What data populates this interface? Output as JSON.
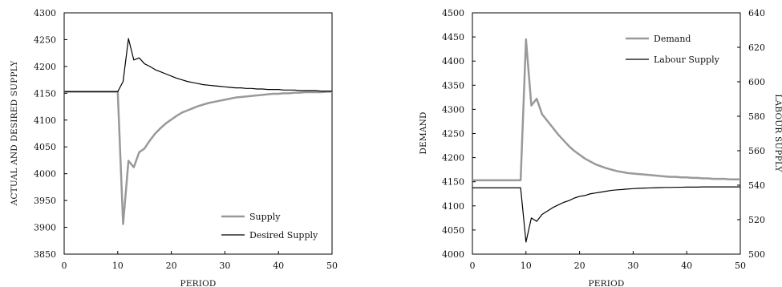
{
  "chart_data": [
    {
      "type": "line",
      "title": "",
      "xlabel": "PERIOD",
      "ylabel": "ACTUAL AND DESIRED SUPPLY",
      "xlim": [
        0,
        50
      ],
      "ylim": [
        3850,
        4300
      ],
      "xticks": [
        "0",
        "10",
        "20",
        "30",
        "40",
        "50"
      ],
      "yticks": [
        "3850",
        "3900",
        "3950",
        "4000",
        "4050",
        "4100",
        "4150",
        "4200",
        "4250",
        "4300"
      ],
      "grid": false,
      "legend_position": "bottom-right",
      "series": [
        {
          "name": "Supply",
          "color": "#999999",
          "width": 2.5,
          "x": [
            0,
            1,
            2,
            3,
            4,
            5,
            6,
            7,
            8,
            9,
            10,
            11,
            12,
            13,
            14,
            15,
            16,
            17,
            18,
            19,
            20,
            21,
            22,
            23,
            24,
            25,
            26,
            27,
            28,
            29,
            30,
            31,
            32,
            33,
            34,
            35,
            36,
            37,
            38,
            39,
            40,
            41,
            42,
            43,
            44,
            45,
            46,
            47,
            48,
            49,
            50
          ],
          "y": [
            4153,
            4153,
            4153,
            4153,
            4153,
            4153,
            4153,
            4153,
            4153,
            4153,
            4153,
            3906,
            4024,
            4012,
            4040,
            4047,
            4062,
            4075,
            4085,
            4094,
            4101,
            4108,
            4114,
            4118,
            4122,
            4126,
            4129,
            4132,
            4134,
            4136,
            4138,
            4140,
            4142,
            4143,
            4144,
            4145,
            4146,
            4147,
            4148,
            4149,
            4149,
            4150,
            4150,
            4151,
            4151,
            4152,
            4152,
            4152,
            4152,
            4153,
            4153
          ]
        },
        {
          "name": "Desired Supply",
          "color": "#000000",
          "width": 1.2,
          "x": [
            0,
            1,
            2,
            3,
            4,
            5,
            6,
            7,
            8,
            9,
            10,
            11,
            12,
            13,
            14,
            15,
            16,
            17,
            18,
            19,
            20,
            21,
            22,
            23,
            24,
            25,
            26,
            27,
            28,
            29,
            30,
            31,
            32,
            33,
            34,
            35,
            36,
            37,
            38,
            39,
            40,
            41,
            42,
            43,
            44,
            45,
            46,
            47,
            48,
            49,
            50
          ],
          "y": [
            4153,
            4153,
            4153,
            4153,
            4153,
            4153,
            4153,
            4153,
            4153,
            4153,
            4153,
            4172,
            4252,
            4212,
            4216,
            4205,
            4200,
            4194,
            4190,
            4186,
            4182,
            4178,
            4175,
            4172,
            4170,
            4168,
            4166,
            4165,
            4164,
            4163,
            4162,
            4161,
            4160,
            4160,
            4159,
            4159,
            4158,
            4158,
            4157,
            4157,
            4157,
            4156,
            4156,
            4156,
            4155,
            4155,
            4155,
            4155,
            4154,
            4154,
            4154
          ]
        }
      ]
    },
    {
      "type": "line",
      "title": "",
      "xlabel": "PERIOD",
      "ylabel": "DEMAND",
      "y2label": "LABOUR SUPPLY",
      "xlim": [
        0,
        50
      ],
      "ylim": [
        4000,
        4500
      ],
      "y2lim": [
        500,
        640
      ],
      "xticks": [
        "0",
        "10",
        "20",
        "30",
        "40",
        "50"
      ],
      "yticks": [
        "4000",
        "4050",
        "4100",
        "4150",
        "4200",
        "4250",
        "4300",
        "4350",
        "4400",
        "4450",
        "4500"
      ],
      "y2ticks": [
        "500",
        "520",
        "540",
        "560",
        "580",
        "600",
        "620",
        "640"
      ],
      "grid": false,
      "legend_position": "top-right",
      "series": [
        {
          "name": "Demand",
          "axis": "left",
          "color": "#999999",
          "width": 2.5,
          "x": [
            0,
            1,
            2,
            3,
            4,
            5,
            6,
            7,
            8,
            9,
            10,
            11,
            12,
            13,
            14,
            15,
            16,
            17,
            18,
            19,
            20,
            21,
            22,
            23,
            24,
            25,
            26,
            27,
            28,
            29,
            30,
            31,
            32,
            33,
            34,
            35,
            36,
            37,
            38,
            39,
            40,
            41,
            42,
            43,
            44,
            45,
            46,
            47,
            48,
            49,
            50
          ],
          "y": [
            4153,
            4153,
            4153,
            4153,
            4153,
            4153,
            4153,
            4153,
            4153,
            4153,
            4445,
            4308,
            4322,
            4290,
            4276,
            4262,
            4248,
            4236,
            4224,
            4214,
            4206,
            4198,
            4192,
            4186,
            4182,
            4178,
            4175,
            4172,
            4170,
            4168,
            4167,
            4166,
            4165,
            4164,
            4163,
            4162,
            4161,
            4160,
            4160,
            4159,
            4159,
            4158,
            4158,
            4157,
            4157,
            4156,
            4156,
            4156,
            4155,
            4155,
            4155
          ]
        },
        {
          "name": "Labour Supply",
          "axis": "right",
          "color": "#000000",
          "width": 1.2,
          "x": [
            0,
            1,
            2,
            3,
            4,
            5,
            6,
            7,
            8,
            9,
            10,
            11,
            12,
            13,
            14,
            15,
            16,
            17,
            18,
            19,
            20,
            21,
            22,
            23,
            24,
            25,
            26,
            27,
            28,
            29,
            30,
            31,
            32,
            33,
            34,
            35,
            36,
            37,
            38,
            39,
            40,
            41,
            42,
            43,
            44,
            45,
            46,
            47,
            48,
            49,
            50
          ],
          "y": [
            538.5,
            538.5,
            538.5,
            538.5,
            538.5,
            538.5,
            538.5,
            538.5,
            538.5,
            538.5,
            507,
            521,
            519,
            523,
            525,
            527,
            528.5,
            530,
            531,
            532.5,
            533.5,
            534,
            535,
            535.5,
            536,
            536.5,
            537,
            537.3,
            537.5,
            537.8,
            538,
            538.2,
            538.3,
            538.4,
            538.5,
            538.6,
            538.7,
            538.7,
            538.8,
            538.8,
            538.9,
            538.9,
            538.9,
            539,
            539,
            539,
            539,
            539,
            539,
            539,
            539
          ]
        }
      ]
    }
  ]
}
